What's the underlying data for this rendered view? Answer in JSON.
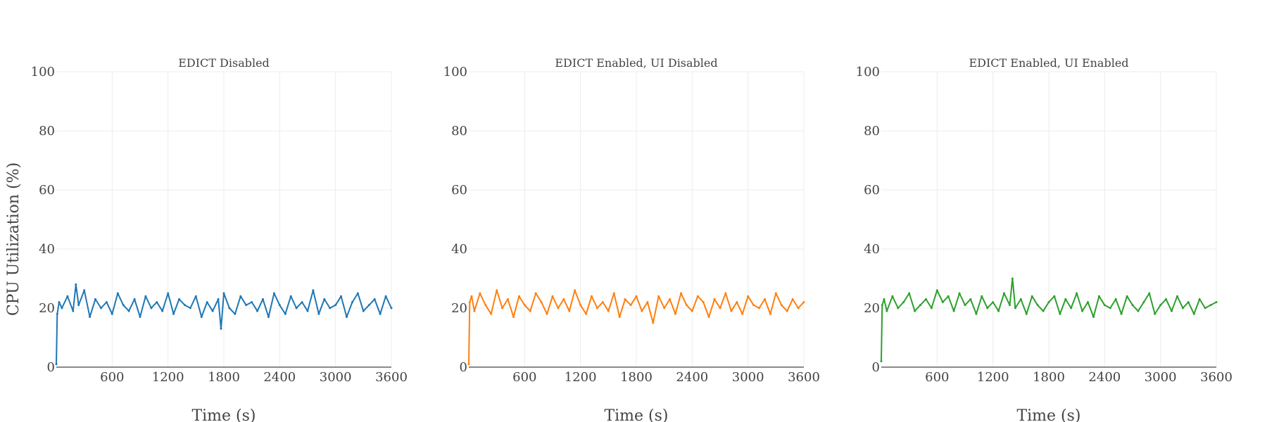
{
  "chart_data": {
    "type": "line",
    "ylabel": "CPU Utilization (%)",
    "xlabel": "Time (s)",
    "xlim": [
      0,
      3600
    ],
    "ylim": [
      0,
      100
    ],
    "x_ticks": [
      600,
      1200,
      1800,
      2400,
      3000,
      3600
    ],
    "x_tick_labels": [
      "600",
      "1200",
      "1800",
      "2400",
      "3000",
      "3600"
    ],
    "y_ticks": [
      0,
      20,
      40,
      60,
      80,
      100
    ],
    "y_tick_labels": [
      "0",
      "20",
      "40",
      "60",
      "80",
      "100"
    ],
    "grid": true,
    "legend": false,
    "panels": [
      {
        "subtitle": "EDICT Disabled",
        "color": "#1f77b4",
        "series": {
          "x": [
            0,
            10,
            30,
            60,
            120,
            180,
            210,
            240,
            300,
            360,
            420,
            480,
            540,
            600,
            660,
            720,
            780,
            840,
            900,
            960,
            1020,
            1080,
            1140,
            1200,
            1260,
            1320,
            1380,
            1440,
            1500,
            1560,
            1620,
            1680,
            1740,
            1770,
            1800,
            1860,
            1920,
            1980,
            2040,
            2100,
            2160,
            2220,
            2280,
            2340,
            2400,
            2460,
            2520,
            2580,
            2640,
            2700,
            2760,
            2820,
            2880,
            2940,
            3000,
            3060,
            3120,
            3180,
            3240,
            3300,
            3360,
            3420,
            3480,
            3540,
            3600
          ],
          "y": [
            1,
            18,
            22,
            20,
            24,
            19,
            28,
            21,
            26,
            17,
            23,
            20,
            22,
            18,
            25,
            21,
            19,
            23,
            17,
            24,
            20,
            22,
            19,
            25,
            18,
            23,
            21,
            20,
            24,
            17,
            22,
            19,
            23,
            13,
            25,
            20,
            18,
            24,
            21,
            22,
            19,
            23,
            17,
            25,
            21,
            18,
            24,
            20,
            22,
            19,
            26,
            18,
            23,
            20,
            21,
            24,
            17,
            22,
            25,
            19,
            21,
            23,
            18,
            24,
            20
          ]
        }
      },
      {
        "subtitle": "EDICT Enabled, UI Disabled",
        "color": "#ff7f0e",
        "series": {
          "x": [
            0,
            10,
            30,
            60,
            120,
            180,
            240,
            300,
            360,
            420,
            480,
            540,
            600,
            660,
            720,
            780,
            840,
            900,
            960,
            1020,
            1080,
            1140,
            1200,
            1260,
            1320,
            1380,
            1440,
            1500,
            1560,
            1620,
            1680,
            1740,
            1800,
            1860,
            1920,
            1980,
            2040,
            2100,
            2160,
            2220,
            2280,
            2340,
            2400,
            2460,
            2520,
            2580,
            2640,
            2700,
            2760,
            2820,
            2880,
            2940,
            3000,
            3060,
            3120,
            3180,
            3240,
            3300,
            3360,
            3420,
            3480,
            3540,
            3600
          ],
          "y": [
            1,
            22,
            24,
            19,
            25,
            21,
            18,
            26,
            20,
            23,
            17,
            24,
            21,
            19,
            25,
            22,
            18,
            24,
            20,
            23,
            19,
            26,
            21,
            18,
            24,
            20,
            22,
            19,
            25,
            17,
            23,
            21,
            24,
            19,
            22,
            15,
            24,
            20,
            23,
            18,
            25,
            21,
            19,
            24,
            22,
            17,
            23,
            20,
            25,
            19,
            22,
            18,
            24,
            21,
            20,
            23,
            18,
            25,
            21,
            19,
            23,
            20,
            22
          ]
        }
      },
      {
        "subtitle": "EDICT Enabled, UI Enabled",
        "color": "#2ca02c",
        "series": {
          "x": [
            0,
            10,
            30,
            60,
            120,
            180,
            240,
            300,
            360,
            420,
            480,
            540,
            600,
            660,
            720,
            780,
            840,
            900,
            960,
            1020,
            1080,
            1140,
            1200,
            1260,
            1320,
            1380,
            1410,
            1440,
            1500,
            1560,
            1620,
            1680,
            1740,
            1800,
            1860,
            1920,
            1980,
            2040,
            2100,
            2160,
            2220,
            2280,
            2340,
            2400,
            2460,
            2520,
            2580,
            2640,
            2700,
            2760,
            2820,
            2880,
            2940,
            3000,
            3060,
            3120,
            3180,
            3240,
            3300,
            3360,
            3420,
            3480,
            3540,
            3600
          ],
          "y": [
            2,
            21,
            23,
            19,
            24,
            20,
            22,
            25,
            19,
            21,
            23,
            20,
            26,
            22,
            24,
            19,
            25,
            21,
            23,
            18,
            24,
            20,
            22,
            19,
            25,
            21,
            30,
            20,
            23,
            18,
            24,
            21,
            19,
            22,
            24,
            18,
            23,
            20,
            25,
            19,
            22,
            17,
            24,
            21,
            20,
            23,
            18,
            24,
            21,
            19,
            22,
            25,
            18,
            21,
            23,
            19,
            24,
            20,
            22,
            18,
            23,
            20,
            21,
            22
          ]
        }
      }
    ]
  }
}
